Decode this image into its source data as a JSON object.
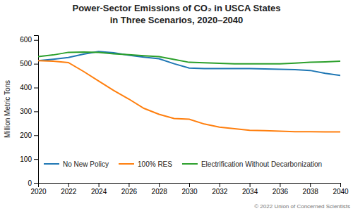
{
  "chart_data": {
    "type": "line",
    "title": "Power-Sector Emissions of CO₂ in USCA States\nin Three Scenarios, 2020–2040",
    "ylabel": "Million Metric Tons",
    "annotations": [
      "© 2022 Union of Concerned Scientists"
    ],
    "x": [
      2020,
      2021,
      2022,
      2023,
      2024,
      2025,
      2026,
      2027,
      2028,
      2029,
      2030,
      2031,
      2032,
      2033,
      2034,
      2035,
      2036,
      2037,
      2038,
      2039,
      2040
    ],
    "xlim": [
      2020,
      2040
    ],
    "ylim": [
      0,
      620
    ],
    "xticks": [
      2020,
      2022,
      2024,
      2026,
      2028,
      2030,
      2032,
      2034,
      2036,
      2038,
      2040
    ],
    "yticks": [
      0,
      100,
      200,
      300,
      400,
      500,
      600
    ],
    "grid": false,
    "legend": "lower left",
    "series": [
      {
        "name": "No New Policy",
        "values": [
          513,
          519,
          526,
          540,
          551,
          546,
          536,
          528,
          521,
          500,
          482,
          480,
          480,
          480,
          480,
          478,
          477,
          475,
          472,
          460,
          451
        ]
      },
      {
        "name": "100% RES",
        "values": [
          513,
          511,
          505,
          468,
          428,
          388,
          352,
          313,
          288,
          270,
          267,
          247,
          234,
          227,
          221,
          219,
          217,
          215,
          215,
          214,
          214
        ]
      },
      {
        "name": "Electrification Without Decarbonization",
        "values": [
          530,
          537,
          548,
          549,
          548,
          542,
          538,
          534,
          530,
          518,
          506,
          504,
          502,
          500,
          500,
          500,
          500,
          503,
          506,
          508,
          511
        ]
      }
    ]
  }
}
